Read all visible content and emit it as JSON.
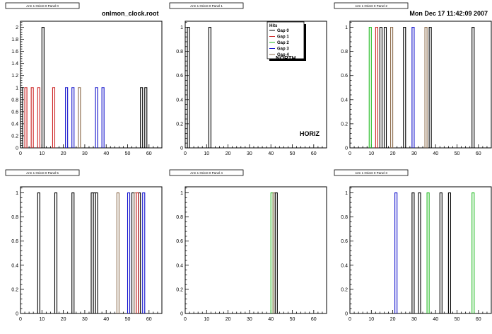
{
  "header": {
    "filename": "onlmon_clock.root",
    "timestamp": "Mon Dec 17 11:42:09 2007"
  },
  "colors": {
    "Gap 0": "#000000",
    "Gap 1": "#cc2222",
    "Gap 2": "#22bb22",
    "Gap 3": "#1111cc",
    "Gap 4": "#8b6a4a"
  },
  "chart_data": [
    {
      "type": "bar",
      "title": "Arm 1 Orient 0 Panel 0",
      "xlim": [
        0,
        66
      ],
      "ylim": [
        0,
        2.1
      ],
      "xticks": [
        0,
        10,
        20,
        30,
        40,
        50,
        60
      ],
      "yticks": [
        0,
        0.2,
        0.4,
        0.6,
        0.8,
        1,
        1.2,
        1.4,
        1.6,
        1.8,
        2
      ],
      "ytick_labels": [
        "0",
        "0.2",
        "0.4",
        "0.6",
        "0.8",
        "1",
        "1.2",
        "1.4",
        "1.6",
        "1.8",
        "2"
      ],
      "bin_width": 1,
      "series": [
        {
          "name": "Gap 0",
          "x": [
            0,
            10,
            56,
            58
          ],
          "values": [
            1,
            2,
            1,
            1
          ]
        },
        {
          "name": "Gap 1",
          "x": [
            2,
            5,
            8,
            15
          ],
          "values": [
            1,
            1,
            1,
            1
          ]
        },
        {
          "name": "Gap 3",
          "x": [
            21,
            24,
            35,
            38
          ],
          "values": [
            1,
            1,
            1,
            1
          ]
        },
        {
          "name": "Gap 4",
          "x": [
            27
          ],
          "values": [
            1
          ]
        }
      ]
    },
    {
      "type": "bar",
      "title": "Arm 1 Orient 0 Panel 1",
      "xlim": [
        0,
        66
      ],
      "ylim": [
        0,
        1.05
      ],
      "xticks": [
        0,
        10,
        20,
        30,
        40,
        50,
        60
      ],
      "yticks": [
        0,
        0.2,
        0.4,
        0.6,
        0.8,
        1
      ],
      "ytick_labels": [
        "0",
        "0.2",
        "0.4",
        "0.6",
        "0.8",
        "1"
      ],
      "bin_width": 1,
      "annotation": "HORIZ",
      "legend": {
        "title": "Hits",
        "entries": [
          "Gap 0",
          "Gap 1",
          "Gap 2",
          "Gap 3",
          "Gap 4"
        ],
        "overlay_text": "NORTH",
        "position": "top-right"
      },
      "series": [
        {
          "name": "Gap 0",
          "x": [
            1,
            11
          ],
          "values": [
            1,
            1
          ]
        }
      ]
    },
    {
      "type": "bar",
      "title": "Arm 1 Orient 0 Panel 2",
      "xlim": [
        0,
        66
      ],
      "ylim": [
        0,
        1.05
      ],
      "xticks": [
        0,
        10,
        20,
        30,
        40,
        50,
        60
      ],
      "yticks": [
        0,
        0.2,
        0.4,
        0.6,
        0.8,
        1
      ],
      "ytick_labels": [
        "0",
        "0.2",
        "0.4",
        "0.6",
        "0.8",
        "1"
      ],
      "bin_width": 1,
      "series": [
        {
          "name": "Gap 0",
          "x": [
            14,
            16,
            25,
            37,
            57
          ],
          "values": [
            1,
            1,
            1,
            1,
            1
          ]
        },
        {
          "name": "Gap 2",
          "x": [
            9
          ],
          "values": [
            1
          ]
        },
        {
          "name": "Gap 1",
          "x": [
            12
          ],
          "values": [
            1
          ]
        },
        {
          "name": "Gap 4",
          "x": [
            19,
            35
          ],
          "values": [
            1,
            1
          ]
        },
        {
          "name": "Gap 3",
          "x": [
            29
          ],
          "values": [
            1
          ]
        }
      ]
    },
    {
      "type": "bar",
      "title": "Arm 1 Orient 0 Panel 5",
      "xlim": [
        0,
        66
      ],
      "ylim": [
        0,
        1.05
      ],
      "xticks": [
        0,
        10,
        20,
        30,
        40,
        50,
        60
      ],
      "yticks": [
        0,
        0.2,
        0.4,
        0.6,
        0.8,
        1
      ],
      "ytick_labels": [
        "0",
        "0.2",
        "0.4",
        "0.6",
        "0.8",
        "1"
      ],
      "bin_width": 1,
      "series": [
        {
          "name": "Gap 0",
          "x": [
            8,
            16,
            24,
            33,
            34,
            35,
            52,
            55
          ],
          "values": [
            1,
            1,
            1,
            1,
            1,
            1,
            1,
            1
          ]
        },
        {
          "name": "Gap 4",
          "x": [
            45,
            53
          ],
          "values": [
            1,
            1
          ]
        },
        {
          "name": "Gap 3",
          "x": [
            50,
            57
          ],
          "values": [
            1,
            1
          ]
        },
        {
          "name": "Gap 1",
          "x": [
            54
          ],
          "values": [
            1
          ]
        }
      ]
    },
    {
      "type": "bar",
      "title": "Arm 1 Orient 0 Panel 4",
      "xlim": [
        0,
        66
      ],
      "ylim": [
        0,
        1.05
      ],
      "xticks": [
        0,
        10,
        20,
        30,
        40,
        50,
        60
      ],
      "yticks": [
        0,
        0.2,
        0.4,
        0.6,
        0.8,
        1
      ],
      "ytick_labels": [
        "0",
        "0.2",
        "0.4",
        "0.6",
        "0.8",
        "1"
      ],
      "bin_width": 1,
      "series": [
        {
          "name": "Gap 2",
          "x": [
            40
          ],
          "values": [
            1
          ]
        },
        {
          "name": "Gap 4",
          "x": [
            41
          ],
          "values": [
            1
          ]
        },
        {
          "name": "Gap 0",
          "x": [
            42
          ],
          "values": [
            1
          ]
        }
      ]
    },
    {
      "type": "bar",
      "title": "Arm 1 Orient 0 Panel 3",
      "xlim": [
        0,
        66
      ],
      "ylim": [
        0,
        1.05
      ],
      "xticks": [
        0,
        10,
        20,
        30,
        40,
        50,
        60
      ],
      "yticks": [
        0,
        0.2,
        0.4,
        0.6,
        0.8,
        1
      ],
      "ytick_labels": [
        "0",
        "0.2",
        "0.4",
        "0.6",
        "0.8",
        "1"
      ],
      "bin_width": 1,
      "series": [
        {
          "name": "Gap 3",
          "x": [
            21
          ],
          "values": [
            1
          ]
        },
        {
          "name": "Gap 0",
          "x": [
            29,
            32,
            42,
            46
          ],
          "values": [
            1,
            1,
            1,
            1
          ]
        },
        {
          "name": "Gap 2",
          "x": [
            36,
            57
          ],
          "values": [
            1,
            1
          ]
        }
      ]
    }
  ]
}
